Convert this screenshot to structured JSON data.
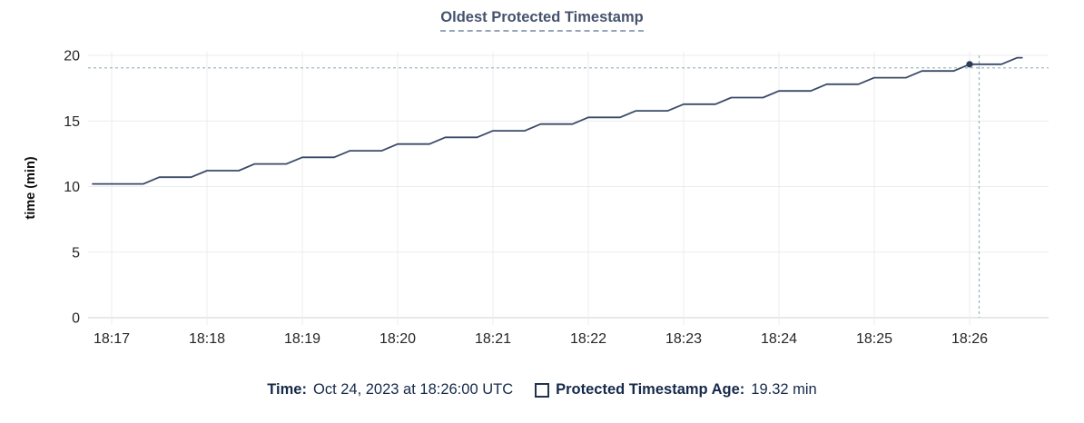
{
  "chart_data": {
    "type": "line",
    "title": "Oldest Protected Timestamp",
    "ylabel": "time (min)",
    "xlabel": "",
    "grid": true,
    "ylim": [
      0,
      20
    ],
    "y_ticks": [
      0,
      5,
      10,
      15,
      20
    ],
    "x_ticks": [
      "18:17",
      "18:18",
      "18:19",
      "18:20",
      "18:21",
      "18:22",
      "18:23",
      "18:24",
      "18:25",
      "18:26"
    ],
    "series": [
      {
        "name": "Protected Timestamp Age",
        "color": "#3b4a67",
        "points": [
          [
            "18:16:48",
            10.2
          ],
          [
            "18:17:20",
            10.2
          ],
          [
            "18:17:30",
            10.71
          ],
          [
            "18:17:50",
            10.71
          ],
          [
            "18:18:00",
            11.21
          ],
          [
            "18:18:20",
            11.21
          ],
          [
            "18:18:30",
            11.72
          ],
          [
            "18:18:50",
            11.72
          ],
          [
            "18:19:00",
            12.23
          ],
          [
            "18:19:20",
            12.23
          ],
          [
            "18:19:30",
            12.73
          ],
          [
            "18:19:50",
            12.73
          ],
          [
            "18:20:00",
            13.24
          ],
          [
            "18:20:20",
            13.24
          ],
          [
            "18:20:30",
            13.75
          ],
          [
            "18:20:50",
            13.75
          ],
          [
            "18:21:00",
            14.25
          ],
          [
            "18:21:20",
            14.25
          ],
          [
            "18:21:30",
            14.76
          ],
          [
            "18:21:50",
            14.76
          ],
          [
            "18:22:00",
            15.27
          ],
          [
            "18:22:20",
            15.27
          ],
          [
            "18:22:30",
            15.77
          ],
          [
            "18:22:50",
            15.77
          ],
          [
            "18:23:00",
            16.28
          ],
          [
            "18:23:20",
            16.28
          ],
          [
            "18:23:30",
            16.78
          ],
          [
            "18:23:50",
            16.78
          ],
          [
            "18:24:00",
            17.29
          ],
          [
            "18:24:20",
            17.29
          ],
          [
            "18:24:30",
            17.8
          ],
          [
            "18:24:50",
            17.8
          ],
          [
            "18:25:00",
            18.3
          ],
          [
            "18:25:20",
            18.3
          ],
          [
            "18:25:30",
            18.81
          ],
          [
            "18:25:50",
            18.81
          ],
          [
            "18:26:00",
            19.32
          ],
          [
            "18:26:20",
            19.32
          ],
          [
            "18:26:30",
            19.82
          ],
          [
            "18:26:33",
            19.82
          ]
        ]
      }
    ],
    "marker": {
      "time": "18:26:00",
      "value": 19.32
    },
    "crosshair": {
      "time": "18:26:06",
      "value": 19.05,
      "color": "#9fb9c1"
    },
    "legend_position": "bottom"
  },
  "legend": {
    "time_label": "Time:",
    "time_value": "Oct 24, 2023 at 18:26:00 UTC",
    "series_label": "Protected Timestamp Age:",
    "series_value": "19.32 min"
  },
  "colors": {
    "title": "#46536d",
    "title_underline": "#97a5b9",
    "legend_text": "#16294b",
    "line": "#3b4a67",
    "marker": "#2d3c58",
    "crosshair": "#9fb9c1",
    "gridline": "#ececec",
    "axis_line": "#e0e0e0",
    "tick_label": "#262626"
  }
}
